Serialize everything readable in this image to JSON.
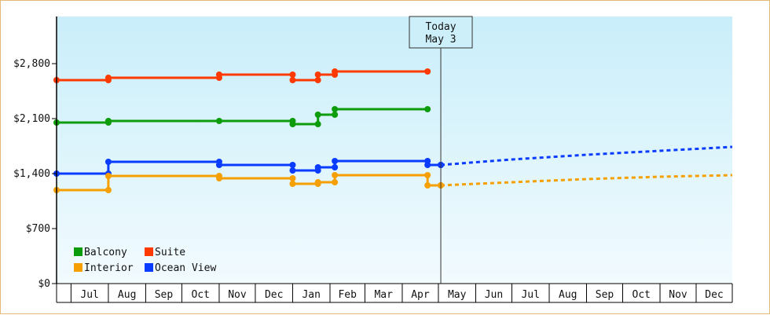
{
  "chart_data": {
    "type": "line",
    "title": "",
    "xlabel": "",
    "ylabel": "",
    "ylim": [
      0,
      3400
    ],
    "xlim": [
      "2023-06-19",
      "2024-12-31"
    ],
    "grid": false,
    "legend_position": "bottom-left",
    "y_ticks": [
      {
        "value": 0,
        "label": "$0"
      },
      {
        "value": 700,
        "label": "$700"
      },
      {
        "value": 1400,
        "label": "$1,400"
      },
      {
        "value": 2100,
        "label": "$2,100"
      },
      {
        "value": 2800,
        "label": "$2,800"
      }
    ],
    "x_ticks": [
      {
        "label": "Jul",
        "start": "2023-07-01",
        "end": "2023-07-31"
      },
      {
        "label": "Aug",
        "start": "2023-08-01",
        "end": "2023-08-31"
      },
      {
        "label": "Sep",
        "start": "2023-09-01",
        "end": "2023-09-30"
      },
      {
        "label": "Oct",
        "start": "2023-10-01",
        "end": "2023-10-31"
      },
      {
        "label": "Nov",
        "start": "2023-11-01",
        "end": "2023-11-30"
      },
      {
        "label": "Dec",
        "start": "2023-12-01",
        "end": "2023-12-31"
      },
      {
        "label": "Jan",
        "start": "2024-01-01",
        "end": "2024-01-31"
      },
      {
        "label": "Feb",
        "start": "2024-02-01",
        "end": "2024-02-29"
      },
      {
        "label": "Mar",
        "start": "2024-03-01",
        "end": "2024-03-31"
      },
      {
        "label": "Apr",
        "start": "2024-04-01",
        "end": "2024-04-30"
      },
      {
        "label": "May",
        "start": "2024-05-01",
        "end": "2024-05-31"
      },
      {
        "label": "Jun",
        "start": "2024-06-01",
        "end": "2024-06-30"
      },
      {
        "label": "Jul",
        "start": "2024-07-01",
        "end": "2024-07-31"
      },
      {
        "label": "Aug",
        "start": "2024-08-01",
        "end": "2024-08-31"
      },
      {
        "label": "Sep",
        "start": "2024-09-01",
        "end": "2024-09-30"
      },
      {
        "label": "Oct",
        "start": "2024-10-01",
        "end": "2024-10-31"
      },
      {
        "label": "Nov",
        "start": "2024-11-01",
        "end": "2024-11-30"
      },
      {
        "label": "Dec",
        "start": "2024-12-01",
        "end": "2024-12-31"
      }
    ],
    "today": {
      "label_line1": "Today",
      "label_line2": "May 3",
      "date": "2024-05-03"
    },
    "series": [
      {
        "name": "Suite",
        "color": "#ff3a00",
        "points": [
          [
            "2023-06-19",
            2590
          ],
          [
            "2023-08-01",
            2590
          ],
          [
            "2023-08-01",
            2620
          ],
          [
            "2023-11-01",
            2620
          ],
          [
            "2023-11-01",
            2660
          ],
          [
            "2024-01-01",
            2660
          ],
          [
            "2024-01-01",
            2590
          ],
          [
            "2024-01-22",
            2590
          ],
          [
            "2024-01-22",
            2660
          ],
          [
            "2024-02-05",
            2660
          ],
          [
            "2024-02-05",
            2700
          ],
          [
            "2024-04-22",
            2700
          ]
        ],
        "forecast": []
      },
      {
        "name": "Balcony",
        "color": "#0c9c0c",
        "points": [
          [
            "2023-06-19",
            2050
          ],
          [
            "2023-08-01",
            2050
          ],
          [
            "2023-08-01",
            2070
          ],
          [
            "2023-11-01",
            2070
          ],
          [
            "2024-01-01",
            2070
          ],
          [
            "2024-01-01",
            2030
          ],
          [
            "2024-01-22",
            2030
          ],
          [
            "2024-01-22",
            2150
          ],
          [
            "2024-02-05",
            2150
          ],
          [
            "2024-02-05",
            2220
          ],
          [
            "2024-04-22",
            2220
          ]
        ],
        "forecast": []
      },
      {
        "name": "Ocean View",
        "color": "#0a3cff",
        "points": [
          [
            "2023-06-19",
            1400
          ],
          [
            "2023-08-01",
            1400
          ],
          [
            "2023-08-01",
            1550
          ],
          [
            "2023-11-01",
            1550
          ],
          [
            "2023-11-01",
            1510
          ],
          [
            "2024-01-01",
            1510
          ],
          [
            "2024-01-01",
            1440
          ],
          [
            "2024-01-22",
            1440
          ],
          [
            "2024-01-22",
            1480
          ],
          [
            "2024-02-05",
            1480
          ],
          [
            "2024-02-05",
            1560
          ],
          [
            "2024-04-22",
            1560
          ],
          [
            "2024-04-22",
            1510
          ],
          [
            "2024-05-03",
            1510
          ]
        ],
        "forecast": [
          [
            "2024-05-03",
            1510
          ],
          [
            "2024-06-01",
            1545
          ],
          [
            "2024-07-01",
            1580
          ],
          [
            "2024-08-01",
            1610
          ],
          [
            "2024-09-01",
            1640
          ],
          [
            "2024-10-01",
            1665
          ],
          [
            "2024-11-01",
            1690
          ],
          [
            "2024-12-01",
            1715
          ],
          [
            "2024-12-31",
            1740
          ]
        ]
      },
      {
        "name": "Interior",
        "color": "#f5a000",
        "points": [
          [
            "2023-06-19",
            1190
          ],
          [
            "2023-08-01",
            1190
          ],
          [
            "2023-08-01",
            1370
          ],
          [
            "2023-11-01",
            1370
          ],
          [
            "2023-11-01",
            1340
          ],
          [
            "2024-01-01",
            1340
          ],
          [
            "2024-01-01",
            1270
          ],
          [
            "2024-01-22",
            1270
          ],
          [
            "2024-01-22",
            1290
          ],
          [
            "2024-02-05",
            1290
          ],
          [
            "2024-02-05",
            1380
          ],
          [
            "2024-04-22",
            1380
          ],
          [
            "2024-04-22",
            1250
          ],
          [
            "2024-05-03",
            1250
          ]
        ],
        "forecast": [
          [
            "2024-05-03",
            1250
          ],
          [
            "2024-06-01",
            1270
          ],
          [
            "2024-07-01",
            1290
          ],
          [
            "2024-08-01",
            1310
          ],
          [
            "2024-09-01",
            1330
          ],
          [
            "2024-10-01",
            1345
          ],
          [
            "2024-11-01",
            1360
          ],
          [
            "2024-12-01",
            1370
          ],
          [
            "2024-12-31",
            1380
          ]
        ]
      }
    ],
    "legend": [
      {
        "name": "Balcony",
        "color": "#0c9c0c"
      },
      {
        "name": "Suite",
        "color": "#ff3a00"
      },
      {
        "name": "Interior",
        "color": "#f5a000"
      },
      {
        "name": "Ocean View",
        "color": "#0a3cff"
      }
    ]
  }
}
